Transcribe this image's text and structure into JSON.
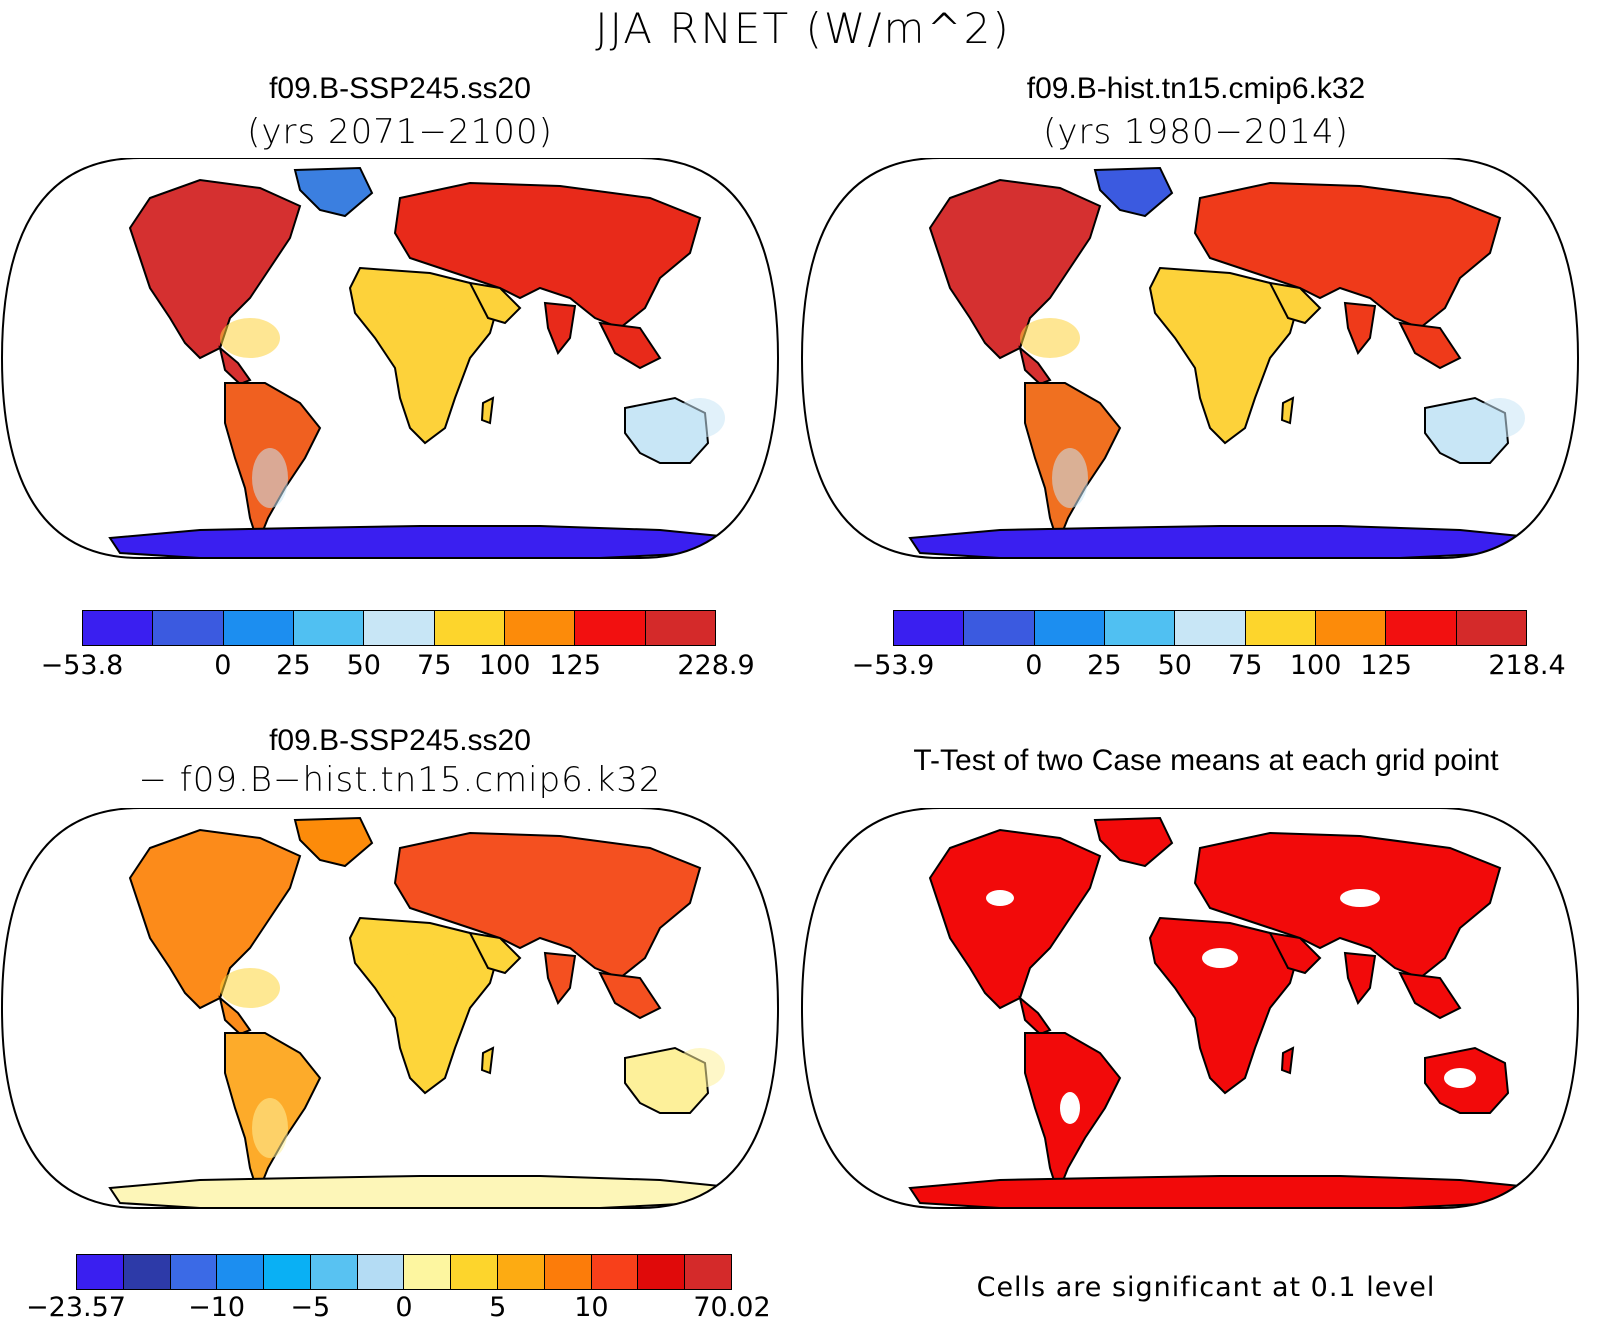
{
  "figure": {
    "title": "JJA RNET (W/m^2)"
  },
  "panels": [
    {
      "id": "p1",
      "title": "f09.B-SSP245.ss20",
      "subtitle": "(yrs 2071−2100)",
      "colorbar": {
        "colors": [
          "#3a1ff0",
          "#3b5ae0",
          "#1c8ef0",
          "#50c0f2",
          "#c8e6f6",
          "#fdd52c",
          "#fc8b0a",
          "#f21010",
          "#d42a2a"
        ],
        "labels": [
          "−53.8",
          "0",
          "25",
          "50",
          "75",
          "100",
          "125",
          "228.9"
        ],
        "label_edges": [
          0,
          2,
          3,
          4,
          5,
          6,
          7,
          9
        ]
      },
      "map": {
        "ocean": "#ffffff",
        "north_america": "#d53030",
        "south_america": "#f06020",
        "europe_asia": "#e82a1a",
        "africa": "#fdd23a",
        "australia": "#c8e6f6",
        "antarctica": "#3a1ff0",
        "greenland": "#3b7fe0"
      }
    },
    {
      "id": "p2",
      "title": "f09.B-hist.tn15.cmip6.k32",
      "subtitle": "(yrs 1980−2014)",
      "colorbar": {
        "colors": [
          "#3a1ff0",
          "#3b5ae0",
          "#1c8ef0",
          "#50c0f2",
          "#c8e6f6",
          "#fdd52c",
          "#fc8b0a",
          "#f21010",
          "#d42a2a"
        ],
        "labels": [
          "−53.9",
          "0",
          "25",
          "50",
          "75",
          "100",
          "125",
          "218.4"
        ],
        "label_edges": [
          0,
          2,
          3,
          4,
          5,
          6,
          7,
          9
        ]
      },
      "map": {
        "ocean": "#ffffff",
        "north_america": "#d53030",
        "south_america": "#f07020",
        "europe_asia": "#ef3a1a",
        "africa": "#fdd23a",
        "australia": "#c8e6f6",
        "antarctica": "#3a1ff0",
        "greenland": "#3b5ae0"
      }
    },
    {
      "id": "p3",
      "title": "f09.B-SSP245.ss20",
      "subtitle": "− f09.B−hist.tn15.cmip6.k32",
      "colorbar": {
        "colors": [
          "#3a1ff0",
          "#2d3aa8",
          "#3b6ae6",
          "#1c8ef0",
          "#0ab0f4",
          "#58c2f2",
          "#b4dcf4",
          "#fdf6a0",
          "#fdd52c",
          "#fdab12",
          "#fc7c0a",
          "#f8401a",
          "#e00a0a",
          "#d42a2a"
        ],
        "labels": [
          "−23.57",
          "−10",
          "−5",
          "0",
          "5",
          "10",
          "70.02"
        ],
        "label_edges": [
          0,
          3,
          5,
          7,
          9,
          11,
          14
        ]
      },
      "map": {
        "ocean": "#ffffff",
        "north_america": "#fc8b1a",
        "south_america": "#fdab2a",
        "europe_asia": "#f45020",
        "africa": "#fdd53a",
        "australia": "#fdf09a",
        "antarctica": "#fdf6b8",
        "greenland": "#fc8b0a"
      }
    },
    {
      "id": "p4",
      "title": "T-Test of two Case means at each grid point",
      "note": "Cells are significant at 0.1 level",
      "map": {
        "ocean": "#ffffff",
        "land": "#f20a0a"
      }
    }
  ]
}
